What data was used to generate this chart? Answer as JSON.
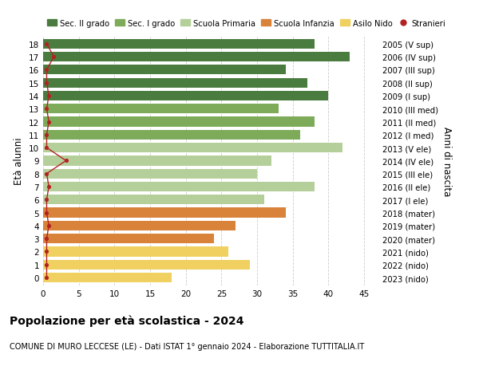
{
  "ages": [
    18,
    17,
    16,
    15,
    14,
    13,
    12,
    11,
    10,
    9,
    8,
    7,
    6,
    5,
    4,
    3,
    2,
    1,
    0
  ],
  "right_labels": [
    "2005 (V sup)",
    "2006 (IV sup)",
    "2007 (III sup)",
    "2008 (II sup)",
    "2009 (I sup)",
    "2010 (III med)",
    "2011 (II med)",
    "2012 (I med)",
    "2013 (V ele)",
    "2014 (IV ele)",
    "2015 (III ele)",
    "2016 (II ele)",
    "2017 (I ele)",
    "2018 (mater)",
    "2019 (mater)",
    "2020 (mater)",
    "2021 (nido)",
    "2022 (nido)",
    "2023 (nido)"
  ],
  "bar_values": [
    38,
    43,
    34,
    37,
    40,
    33,
    38,
    36,
    42,
    32,
    30,
    38,
    31,
    34,
    27,
    24,
    26,
    29,
    18
  ],
  "bar_colors": [
    "#4a7c3f",
    "#4a7c3f",
    "#4a7c3f",
    "#4a7c3f",
    "#4a7c3f",
    "#7dab5a",
    "#7dab5a",
    "#7dab5a",
    "#b5cf9a",
    "#b5cf9a",
    "#b5cf9a",
    "#b5cf9a",
    "#b5cf9a",
    "#d9823a",
    "#d9823a",
    "#d9823a",
    "#f0d060",
    "#f0d060",
    "#f0d060"
  ],
  "stranieri_values": [
    0.5,
    1.5,
    0.5,
    0.5,
    0.8,
    0.5,
    0.8,
    0.5,
    0.5,
    3.2,
    0.5,
    0.8,
    0.5,
    0.5,
    0.8,
    0.5,
    0.5,
    0.5,
    0.5
  ],
  "legend_labels": [
    "Sec. II grado",
    "Sec. I grado",
    "Scuola Primaria",
    "Scuola Infanzia",
    "Asilo Nido",
    "Stranieri"
  ],
  "legend_colors": [
    "#4a7c3f",
    "#7dab5a",
    "#b5cf9a",
    "#d9823a",
    "#f0d060",
    "#b22222"
  ],
  "ylabel": "Età alunni",
  "right_ylabel": "Anni di nascita",
  "xlim": [
    0,
    47
  ],
  "xticks": [
    0,
    5,
    10,
    15,
    20,
    25,
    30,
    35,
    40,
    45
  ],
  "title": "Popolazione per età scolastica - 2024",
  "subtitle": "COMUNE DI MURO LECCESE (LE) - Dati ISTAT 1° gennaio 2024 - Elaborazione TUTTITALIA.IT",
  "bg_color": "#ffffff",
  "bar_height": 0.75,
  "stranieri_color": "#b22222",
  "grid_color": "#cccccc"
}
